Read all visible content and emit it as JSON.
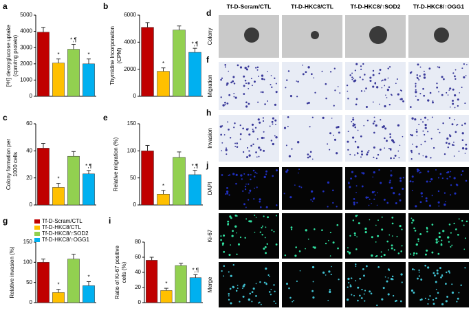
{
  "legend": {
    "series": [
      {
        "name": "Tf-D-Scram/CTL",
        "color": "#c00000"
      },
      {
        "name": "Tf-D-HKC8/CTL",
        "color": "#ffc000"
      },
      {
        "name": "Tf-D-HKC8/↑SOD2",
        "color": "#92d050"
      },
      {
        "name": "Tf-D-HKC8/↑OGG1",
        "color": "#00b0f0"
      }
    ]
  },
  "chart_data": [
    {
      "type": "bar",
      "panel": "a",
      "ylabel": [
        "[³H] deoxyglucose uptake",
        "(cpm/mg protein)"
      ],
      "values": [
        3950,
        2050,
        2900,
        2000
      ],
      "errors": [
        300,
        250,
        300,
        300
      ],
      "annotations": [
        null,
        "*",
        "*,¶",
        "*"
      ],
      "ylim": [
        0,
        5000
      ],
      "yticks": [
        0,
        1000,
        2000,
        3000,
        4000,
        5000
      ]
    },
    {
      "type": "bar",
      "panel": "b",
      "ylabel": [
        "Thymidine Incorporation",
        "(CPM)"
      ],
      "values": [
        5100,
        1850,
        4900,
        3250
      ],
      "errors": [
        350,
        250,
        300,
        300
      ],
      "annotations": [
        null,
        "*",
        null,
        "*,¶"
      ],
      "ylim": [
        0,
        6000
      ],
      "yticks": [
        0,
        2000,
        4000,
        6000
      ]
    },
    {
      "type": "bar",
      "panel": "c",
      "ylabel": [
        "Colony formation per",
        "1000 cells"
      ],
      "values": [
        42,
        13,
        36,
        23
      ],
      "errors": [
        3.5,
        3,
        3.5,
        2.5
      ],
      "annotations": [
        null,
        "*",
        null,
        "*,¶"
      ],
      "ylim": [
        0,
        60
      ],
      "yticks": [
        0,
        20,
        40,
        60
      ]
    },
    {
      "type": "bar",
      "panel": "e",
      "ylabel": [
        "Relative migration (%)"
      ],
      "values": [
        100,
        20,
        88,
        56
      ],
      "errors": [
        10,
        7,
        10,
        8
      ],
      "annotations": [
        null,
        "*",
        null,
        "*,¶"
      ],
      "ylim": [
        0,
        150
      ],
      "yticks": [
        0,
        50,
        100,
        150
      ]
    },
    {
      "type": "bar",
      "panel": "g",
      "ylabel": [
        "Relative invasion (%)"
      ],
      "values": [
        100,
        25,
        108,
        42
      ],
      "errors": [
        8,
        8,
        12,
        10
      ],
      "annotations": [
        null,
        "*",
        null,
        "*"
      ],
      "ylim": [
        0,
        150
      ],
      "yticks": [
        0,
        50,
        100,
        150
      ],
      "legend": "upper-left"
    },
    {
      "type": "bar",
      "panel": "i",
      "ylabel": [
        "Ratio of Ki-67 positive",
        "cells (%)"
      ],
      "values": [
        56,
        16,
        49,
        33
      ],
      "errors": [
        4,
        3,
        3,
        4
      ],
      "annotations": [
        null,
        "*",
        null,
        "*,¶"
      ],
      "ylim": [
        0,
        80
      ],
      "yticks": [
        0,
        20,
        40,
        60,
        80
      ]
    }
  ],
  "image_grid": {
    "columns": [
      "Tf-D-Scram/CTL",
      "Tf-D-HKC8/CTL",
      "Tf-D-HKC8/↑SOD2",
      "Tf-D-HKC8/↑OGG1"
    ],
    "rows": [
      {
        "letter": "d",
        "label": "Colony"
      },
      {
        "letter": "f",
        "label": "Migration"
      },
      {
        "letter": "h",
        "label": "Invasion"
      },
      {
        "letter": "j",
        "label": "DAPI"
      },
      {
        "letter": null,
        "label": "Ki-67"
      },
      {
        "letter": null,
        "label": "Merge"
      }
    ]
  }
}
